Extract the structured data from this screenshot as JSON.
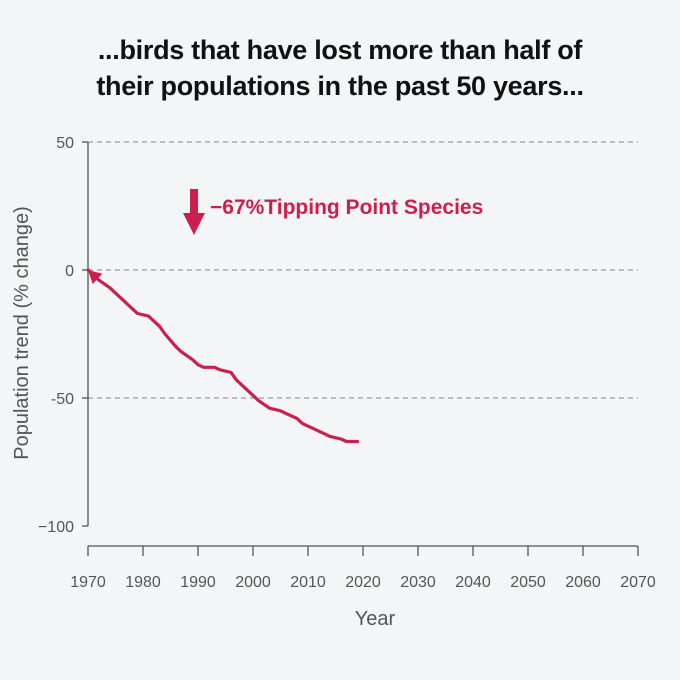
{
  "title_lines": [
    "...birds that have lost more than half of",
    "their populations in the past 50 years..."
  ],
  "colors": {
    "series": "#cc1f4d",
    "axis": "#555555",
    "grid": "#888888",
    "background": "#f4f5f7"
  },
  "chart_data": {
    "type": "line",
    "title": "...birds that have lost more than half of their populations in the past 50 years...",
    "xlabel": "Year",
    "ylabel": "Population trend (% change)",
    "xlim": [
      1970,
      2070
    ],
    "ylim": [
      -100,
      50
    ],
    "x_ticks": [
      "1970",
      "1980",
      "1990",
      "2000",
      "2010",
      "2020",
      "2030",
      "2040",
      "2050",
      "2060",
      "2070"
    ],
    "y_ticks": [
      "50",
      "0",
      "-50",
      "−100"
    ],
    "y_tick_values": [
      50,
      0,
      -50,
      -100
    ],
    "grid": "horizontal dashed at 50, 0, -50",
    "series": [
      {
        "name": "Tipping Point Species",
        "x": [
          1970,
          1972,
          1974,
          1976,
          1978,
          1979,
          1981,
          1983,
          1984,
          1986,
          1987,
          1989,
          1990,
          1991,
          1993,
          1994,
          1996,
          1997,
          1999,
          2000,
          2001,
          2003,
          2005,
          2006,
          2008,
          2009,
          2011,
          2013,
          2014,
          2016,
          2017,
          2018,
          2019
        ],
        "y": [
          0,
          -4,
          -7,
          -11,
          -15,
          -17,
          -18,
          -22,
          -25,
          -30,
          -32,
          -35,
          -37,
          -38,
          -38,
          -39,
          -40,
          -43,
          -47,
          -49,
          -51,
          -54,
          -55,
          -56,
          -58,
          -60,
          -62,
          -64,
          -65,
          -66,
          -67,
          -67,
          -67
        ]
      }
    ],
    "annotations": [
      {
        "text": "−67%",
        "type": "down-arrow"
      },
      {
        "text": "Tipping Point Species"
      }
    ]
  }
}
